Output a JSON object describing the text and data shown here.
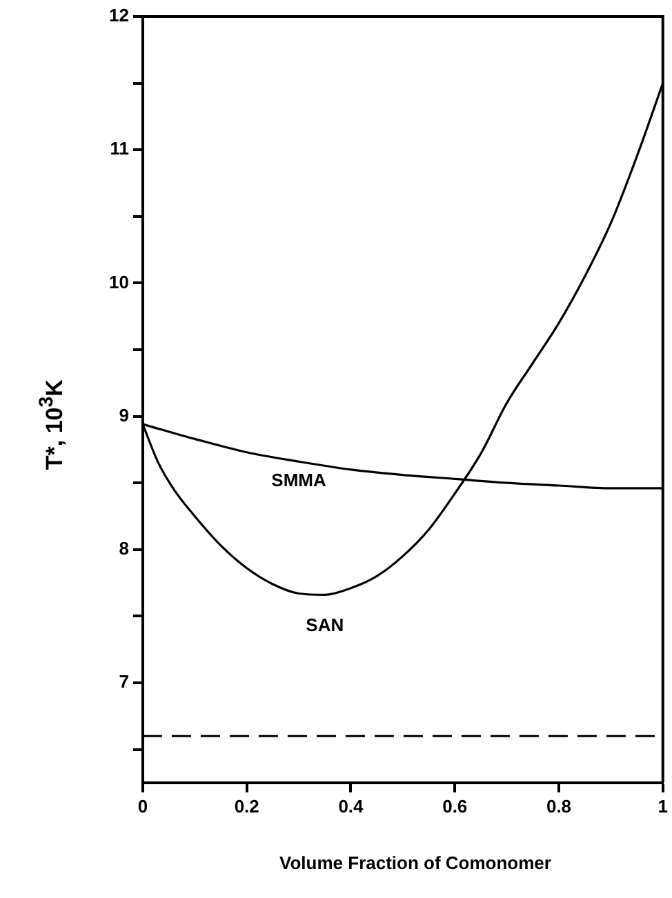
{
  "chart_data": {
    "type": "line",
    "xlabel": "Volume Fraction of Comonomer",
    "ylabel": "T*, 10$^{3}$K",
    "xlim": [
      0,
      1
    ],
    "xticks": [
      0,
      0.2,
      0.4,
      0.6,
      0.8,
      1
    ],
    "ylim": [
      6.25,
      12
    ],
    "yticks": [
      {
        "value": 6.5,
        "label": null
      },
      7,
      {
        "value": 7.5,
        "label": null
      },
      8,
      {
        "value": 8.5,
        "label": null
      },
      9,
      {
        "value": 9.5,
        "label": null
      },
      10,
      {
        "value": 10.5,
        "label": null
      },
      11,
      {
        "value": 11.5,
        "label": null
      },
      12
    ],
    "grid": false,
    "legend": false,
    "marker": "none",
    "line_style": "solid",
    "ref_lines": [
      {
        "axis": "y",
        "value": 6.6,
        "color": "#000000",
        "line_style": "dashed"
      }
    ],
    "series": [
      {
        "name": "SMMA",
        "color": "#000000",
        "x": [
          0,
          0.1,
          0.2,
          0.3,
          0.4,
          0.5,
          0.6,
          0.7,
          0.8,
          0.9,
          1
        ],
        "values": [
          8.94,
          8.83,
          8.73,
          8.66,
          8.6,
          8.56,
          8.53,
          8.5,
          8.48,
          8.46,
          8.46
        ]
      },
      {
        "name": "SAN",
        "color": "#000000",
        "x": [
          0,
          0.03,
          0.06,
          0.1,
          0.15,
          0.2,
          0.25,
          0.3,
          0.35,
          0.4,
          0.45,
          0.5,
          0.55,
          0.6,
          0.65,
          0.7,
          0.75,
          0.8,
          0.85,
          0.9,
          0.95,
          1
        ],
        "values": [
          8.94,
          8.65,
          8.45,
          8.25,
          8.03,
          7.86,
          7.74,
          7.67,
          7.66,
          7.71,
          7.8,
          7.95,
          8.15,
          8.42,
          8.72,
          9.1,
          9.4,
          9.7,
          10.05,
          10.45,
          10.95,
          11.5
        ]
      }
    ]
  }
}
